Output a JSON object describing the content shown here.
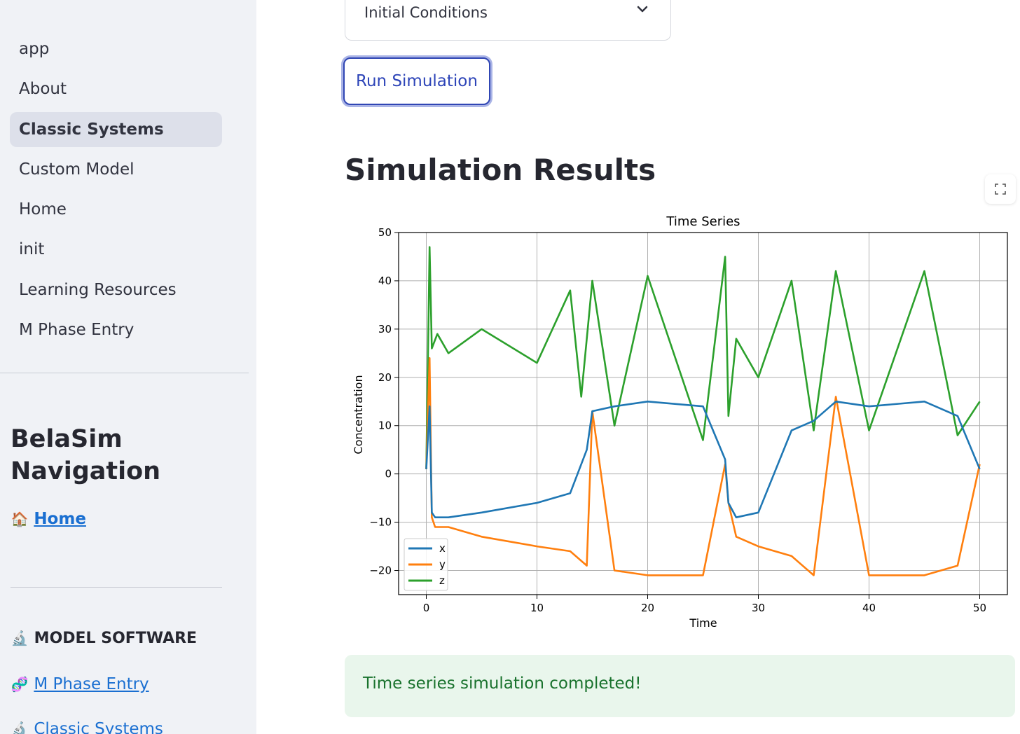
{
  "sidebar": {
    "nav_items": [
      {
        "label": "app",
        "active": false
      },
      {
        "label": "About",
        "active": false
      },
      {
        "label": "Classic Systems",
        "active": true
      },
      {
        "label": "Custom Model",
        "active": false
      },
      {
        "label": "Home",
        "active": false
      },
      {
        "label": "init",
        "active": false
      },
      {
        "label": "Learning Resources",
        "active": false
      },
      {
        "label": "M Phase Entry",
        "active": false
      }
    ],
    "title": "BelaSim Navigation",
    "home_link": {
      "emoji": "🏠",
      "label": "Home"
    },
    "section_heading": {
      "emoji": "🔬",
      "label": "MODEL SOFTWARE"
    },
    "links": [
      {
        "emoji": "🧬",
        "label": "M Phase Entry"
      },
      {
        "emoji": "🔬",
        "label": "Classic Systems"
      }
    ]
  },
  "main": {
    "expander_label": "Initial Conditions",
    "run_button_label": "Run Simulation",
    "results_title": "Simulation Results",
    "success_message": "Time series simulation completed!"
  },
  "colors": {
    "x": "#1f77b4",
    "y": "#ff7f0e",
    "z": "#2ca02c",
    "link": "#1a6fd1",
    "success_bg": "#e9f6ec",
    "success_text": "#19722d",
    "button_border": "#3046b4"
  },
  "chart_data": {
    "type": "line",
    "title": "Time Series",
    "xlabel": "Time",
    "ylabel": "Concentration",
    "xlim": [
      -2.5,
      52.5
    ],
    "ylim": [
      -25,
      50
    ],
    "xticks": [
      0,
      10,
      20,
      30,
      40,
      50
    ],
    "yticks": [
      -20,
      -10,
      0,
      10,
      20,
      30,
      40,
      50
    ],
    "grid": true,
    "legend": "bottom-left",
    "series": [
      {
        "name": "x",
        "color": "#1f77b4",
        "x": [
          0,
          0.3,
          0.5,
          0.8,
          2,
          5,
          10,
          13,
          14.5,
          15,
          17,
          20,
          25,
          27,
          27.3,
          28,
          30,
          33,
          35,
          37,
          40,
          45,
          48,
          50
        ],
        "y": [
          1,
          14,
          -8,
          -9,
          -9,
          -8,
          -6,
          -4,
          5,
          13,
          14,
          15,
          14,
          3,
          -6,
          -9,
          -8,
          9,
          11,
          15,
          14,
          15,
          12,
          1
        ]
      },
      {
        "name": "y",
        "color": "#ff7f0e",
        "x": [
          0,
          0.3,
          0.5,
          0.8,
          2,
          5,
          10,
          13,
          14.5,
          15,
          17,
          20,
          25,
          27,
          27.3,
          28,
          30,
          33,
          35,
          37,
          40,
          45,
          48,
          50
        ],
        "y": [
          1,
          24,
          -9,
          -11,
          -11,
          -13,
          -15,
          -16,
          -19,
          13,
          -20,
          -21,
          -21,
          2,
          -6,
          -13,
          -15,
          -17,
          -21,
          16,
          -21,
          -21,
          -19,
          2
        ]
      },
      {
        "name": "z",
        "color": "#2ca02c",
        "x": [
          0,
          0.3,
          0.5,
          1,
          2,
          5,
          10,
          13,
          14,
          15,
          17,
          20,
          25,
          27,
          27.3,
          28,
          30,
          33,
          35,
          37,
          40,
          45,
          48,
          50
        ],
        "y": [
          1,
          47,
          26,
          29,
          25,
          30,
          23,
          38,
          16,
          40,
          10,
          41,
          7,
          45,
          12,
          28,
          20,
          40,
          9,
          42,
          9,
          42,
          8,
          15
        ]
      }
    ]
  }
}
